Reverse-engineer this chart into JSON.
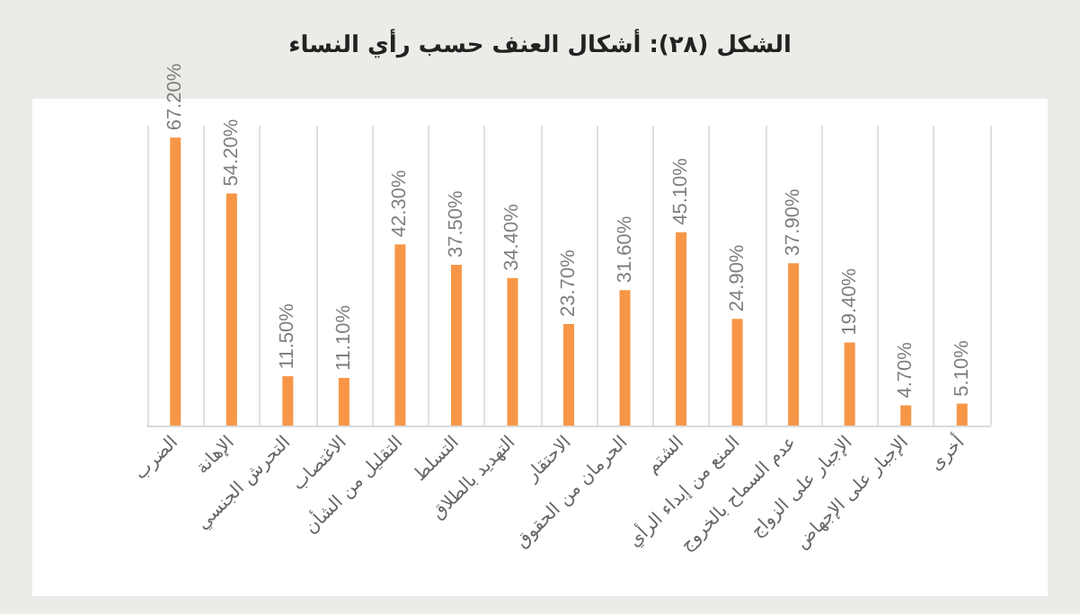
{
  "chart_data": {
    "type": "bar",
    "title": "الشكل (٢٨): أشكال العنف حسب رأي النساء",
    "categories": [
      "الضرب",
      "الإهانة",
      "التحرش الجنسي",
      "الاغتصاب",
      "التقليل من الشأن",
      "التسلط",
      "التهديد بالطلاق",
      "الاحتقار",
      "الحرمان من الحقوق",
      "الشتم",
      "المنع من إبداء الرأي",
      "عدم السماح بالخروج",
      "الإجبار على الزواج",
      "الإجبار على الإجهاض",
      "أخرى"
    ],
    "values": [
      67.2,
      54.2,
      11.5,
      11.1,
      42.3,
      37.5,
      34.4,
      23.7,
      31.6,
      45.1,
      24.9,
      37.9,
      19.4,
      4.7,
      5.1
    ],
    "value_labels": [
      "67.20%",
      "54.20%",
      "11.50%",
      "11.10%",
      "42.30%",
      "37.50%",
      "34.40%",
      "23.70%",
      "31.60%",
      "45.10%",
      "24.90%",
      "37.90%",
      "19.40%",
      "4.70%",
      "5.10%"
    ],
    "color": "#f79646",
    "grid": "x"
  }
}
